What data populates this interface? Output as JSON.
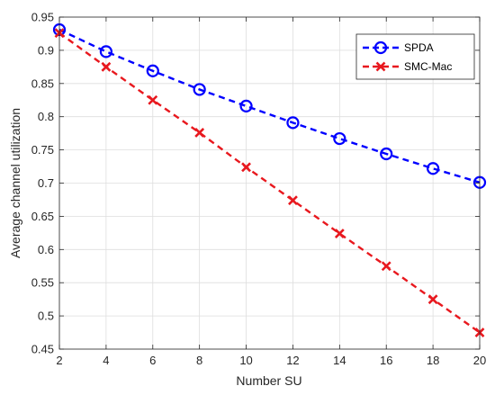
{
  "chart_data": {
    "type": "line",
    "title": "",
    "xlabel": "Number SU",
    "ylabel": "Average channel utilization",
    "xlim": [
      2,
      20
    ],
    "ylim": [
      0.45,
      0.95
    ],
    "x": [
      2,
      4,
      6,
      8,
      10,
      12,
      14,
      16,
      18,
      20
    ],
    "x_ticks": [
      "2",
      "4",
      "6",
      "8",
      "10",
      "12",
      "14",
      "16",
      "18",
      "20"
    ],
    "y_ticks": [
      "0.45",
      "0.5",
      "0.55",
      "0.6",
      "0.65",
      "0.7",
      "0.75",
      "0.8",
      "0.85",
      "0.9",
      "0.95"
    ],
    "grid": true,
    "legend_position": "top-right",
    "series": [
      {
        "name": "SPDA",
        "color": "#0000ff",
        "marker": "circle",
        "line_style": "dashed",
        "values": [
          0.931,
          0.898,
          0.869,
          0.841,
          0.816,
          0.791,
          0.767,
          0.744,
          0.722,
          0.701
        ]
      },
      {
        "name": "SMC-Mac",
        "color": "#e8181e",
        "marker": "x",
        "line_style": "dashed",
        "values": [
          0.926,
          0.875,
          0.825,
          0.776,
          0.724,
          0.674,
          0.624,
          0.575,
          0.525,
          0.475
        ]
      }
    ]
  }
}
